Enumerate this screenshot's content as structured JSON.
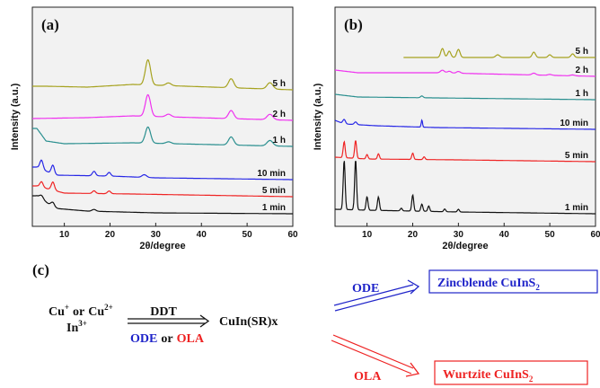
{
  "colors": {
    "series_colors": {
      "5 h": "#a6a21f",
      "2 h": "#ef31ef",
      "1 h": "#2a8f8f",
      "10 min": "#2727e6",
      "5 min": "#ef2424",
      "1 min": "#111111"
    },
    "blue": "#1f24c9",
    "red": "#ee2222",
    "axis_bg": "#f2f2f2"
  },
  "chart_data": [
    {
      "type": "line",
      "panel_label": "(a)",
      "xlabel": "2θ/degree",
      "ylabel": "Intensity (a.u.)",
      "xlim": [
        3,
        60
      ],
      "xticks": [
        10,
        20,
        30,
        40,
        50,
        60
      ],
      "series": [
        {
          "name": "5 h",
          "offset": 138,
          "base": [
            [
              6,
              4
            ],
            [
              15,
              3
            ],
            [
              25,
              6
            ],
            [
              60,
              0
            ]
          ],
          "peaks": [
            [
              28.3,
              28,
              0.8
            ],
            [
              32.8,
              3,
              0.8
            ],
            [
              46.5,
              10,
              0.8
            ],
            [
              55,
              7,
              0.9
            ]
          ]
        },
        {
          "name": "2 h",
          "offset": 104,
          "base": [
            [
              3,
              2
            ],
            [
              15,
              3
            ],
            [
              25,
              5
            ],
            [
              60,
              0
            ]
          ],
          "peaks": [
            [
              28.3,
              24,
              0.8
            ],
            [
              32.8,
              3,
              0.8
            ],
            [
              46.5,
              9,
              0.8
            ],
            [
              55,
              6,
              0.9
            ]
          ]
        },
        {
          "name": "1 h",
          "offset": 75,
          "base": [
            [
              4,
              20
            ],
            [
              6,
              6
            ],
            [
              10,
              3
            ],
            [
              25,
              4
            ],
            [
              60,
              0
            ]
          ],
          "peaks": [
            [
              28.3,
              18,
              0.8
            ],
            [
              32.8,
              2,
              0.8
            ],
            [
              46.5,
              9,
              0.8
            ],
            [
              55,
              6,
              0.9
            ]
          ]
        },
        {
          "name": "10 min",
          "offset": 38,
          "base": [
            [
              4,
              14
            ],
            [
              8,
              5
            ],
            [
              20,
              4
            ],
            [
              30,
              2
            ],
            [
              60,
              0
            ]
          ],
          "peaks": [
            [
              5,
              10,
              0.5
            ],
            [
              7.5,
              10,
              0.5
            ],
            [
              16.5,
              5,
              0.5
            ],
            [
              19.8,
              4,
              0.5
            ],
            [
              27.5,
              3,
              0.7
            ]
          ]
        },
        {
          "name": "5 min",
          "offset": 19,
          "base": [
            [
              4,
              12
            ],
            [
              10,
              4
            ],
            [
              25,
              3
            ],
            [
              60,
              0
            ]
          ],
          "peaks": [
            [
              5,
              6,
              0.5
            ],
            [
              7.5,
              9,
              0.5
            ],
            [
              16.5,
              3,
              0.5
            ],
            [
              19.8,
              3,
              0.5
            ]
          ]
        },
        {
          "name": "1 min",
          "offset": 0,
          "base": [
            [
              4,
              20
            ],
            [
              8,
              6
            ],
            [
              15,
              3
            ],
            [
              30,
              1
            ],
            [
              60,
              0
            ]
          ],
          "peaks": [
            [
              5,
              4,
              0.6
            ],
            [
              7.5,
              5,
              0.6
            ],
            [
              16.5,
              2,
              0.6
            ]
          ]
        }
      ]
    },
    {
      "type": "line",
      "panel_label": "(b)",
      "xlabel": "2θ/degree",
      "ylabel": "Intensity (a.u.)",
      "xlim": [
        3,
        60
      ],
      "xticks": [
        10,
        20,
        30,
        40,
        50,
        60
      ],
      "series": [
        {
          "name": "5 h",
          "offset": 174,
          "x_start": 18,
          "base": [
            [
              18,
              0
            ],
            [
              60,
              0
            ]
          ],
          "peaks": [
            [
              26.5,
              10,
              0.5
            ],
            [
              28,
              7,
              0.5
            ],
            [
              30,
              9,
              0.5
            ],
            [
              38.6,
              3,
              0.6
            ],
            [
              46.5,
              6,
              0.5
            ],
            [
              50,
              3,
              0.5
            ],
            [
              55,
              4,
              0.5
            ]
          ]
        },
        {
          "name": "2 h",
          "offset": 153,
          "base": [
            [
              3,
              7
            ],
            [
              8,
              4
            ],
            [
              25,
              4
            ],
            [
              60,
              0
            ]
          ],
          "peaks": [
            [
              26.5,
              3,
              0.6
            ],
            [
              28,
              2,
              0.6
            ],
            [
              30,
              2,
              0.6
            ],
            [
              46.5,
              2,
              0.6
            ],
            [
              50,
              1,
              0.6
            ],
            [
              55,
              1,
              0.6
            ]
          ]
        },
        {
          "name": "1 h",
          "offset": 127,
          "base": [
            [
              3,
              6
            ],
            [
              8,
              3
            ],
            [
              25,
              2
            ],
            [
              60,
              0
            ]
          ],
          "peaks": [
            [
              22,
              2,
              0.4
            ]
          ]
        },
        {
          "name": "10 min",
          "offset": 94,
          "base": [
            [
              3,
              10
            ],
            [
              5,
              6
            ],
            [
              12,
              4
            ],
            [
              25,
              2
            ],
            [
              60,
              0
            ]
          ],
          "peaks": [
            [
              5,
              5,
              0.4
            ],
            [
              7.5,
              3,
              0.4
            ],
            [
              22,
              8,
              0.2
            ]
          ]
        },
        {
          "name": "5 min",
          "offset": 58,
          "base": [
            [
              3,
              5
            ],
            [
              10,
              3
            ],
            [
              30,
              2
            ],
            [
              60,
              0
            ]
          ],
          "peaks": [
            [
              5,
              18,
              0.3
            ],
            [
              7.5,
              20,
              0.3
            ],
            [
              10,
              5,
              0.3
            ],
            [
              12.5,
              6,
              0.3
            ],
            [
              20,
              7,
              0.3
            ],
            [
              22.5,
              3,
              0.3
            ]
          ]
        },
        {
          "name": "1 min",
          "offset": 0,
          "base": [
            [
              3,
              5
            ],
            [
              10,
              4
            ],
            [
              30,
              2
            ],
            [
              60,
              0
            ]
          ],
          "peaks": [
            [
              5,
              55,
              0.3
            ],
            [
              7.5,
              56,
              0.3
            ],
            [
              10,
              15,
              0.3
            ],
            [
              12.5,
              15,
              0.3
            ],
            [
              17.5,
              3,
              0.3
            ],
            [
              20,
              18,
              0.3
            ],
            [
              22,
              8,
              0.3
            ],
            [
              23.5,
              6,
              0.3
            ],
            [
              27,
              3,
              0.3
            ],
            [
              30,
              3,
              0.3
            ]
          ]
        }
      ]
    }
  ],
  "scheme": {
    "panel_label": "(c)",
    "reactant_1": "Cu",
    "reactant_1_charge": "+",
    "or_word": "or",
    "reactant_2": "Cu",
    "reactant_2_charge": "2+",
    "reactant_3": "In",
    "reactant_3_charge": "3+",
    "reagent": "DDT",
    "solvent_1": "ODE",
    "solvent_2": "OLA",
    "intermediate": "CuIn(SR)x",
    "route_1_solvent": "ODE",
    "route_2_solvent": "OLA",
    "product_1": "Zincblende CuInS",
    "product_1_sub": "2",
    "product_2": "Wurtzite CuInS",
    "product_2_sub": "2"
  }
}
